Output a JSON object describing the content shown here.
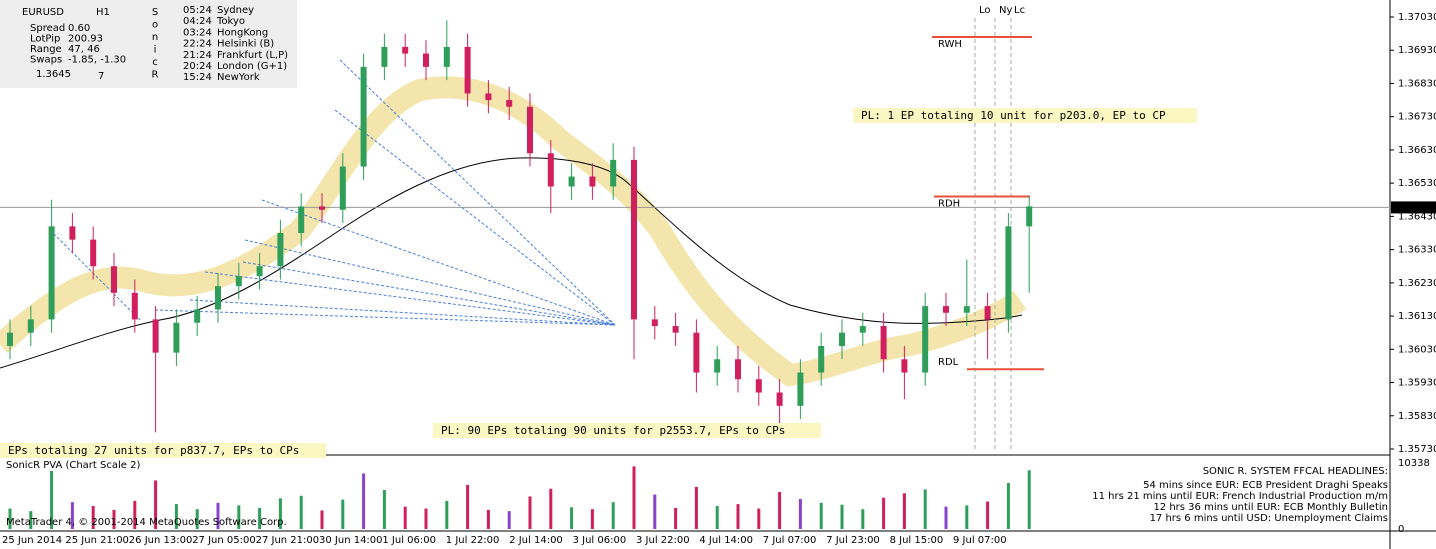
{
  "header": {
    "symbol": "EURUSD",
    "timeframe": "H1",
    "stats": [
      {
        "label": "Spread",
        "value": "0.60"
      },
      {
        "label": "LotPip",
        "value": "200.93"
      },
      {
        "label": "Range",
        "value": "47, 46"
      },
      {
        "label": "Swaps",
        "value": "-1.85, -1.30"
      }
    ],
    "price": "1.3645",
    "price_digit": "7",
    "brand_letters": [
      "S",
      "o",
      "n",
      "i",
      "c",
      "R"
    ]
  },
  "sessions": [
    {
      "time": "05:24",
      "city": "Sydney",
      "color": "#333333"
    },
    {
      "time": "04:24",
      "city": "Tokyo",
      "color": "#333333"
    },
    {
      "time": "03:24",
      "city": "HongKong",
      "color": "#333333"
    },
    {
      "time": "22:24",
      "city": "Helsinki  (B)",
      "color": "#333333"
    },
    {
      "time": "21:24",
      "city": "Frankfurt  (L,P)",
      "color": "#333333"
    },
    {
      "time": "20:24",
      "city": "London  (G+1)",
      "color": "#333333"
    },
    {
      "time": "15:24",
      "city": "NewYork",
      "color": "#1a9a1a"
    }
  ],
  "price_axis": {
    "ticks": [
      {
        "value": 1.3703,
        "label": "1.37030"
      },
      {
        "value": 1.3693,
        "label": "1.36930"
      },
      {
        "value": 1.3683,
        "label": "1.36830"
      },
      {
        "value": 1.3673,
        "label": "1.36730"
      },
      {
        "value": 1.3663,
        "label": "1.36630"
      },
      {
        "value": 1.3653,
        "label": "1.36530"
      },
      {
        "value": 1.3643,
        "label": "1.36430"
      },
      {
        "value": 1.3633,
        "label": "1.36330"
      },
      {
        "value": 1.3623,
        "label": "1.36230"
      },
      {
        "value": 1.3613,
        "label": "1.36130"
      },
      {
        "value": 1.3603,
        "label": "1.36030"
      },
      {
        "value": 1.3593,
        "label": "1.35930"
      },
      {
        "value": 1.3583,
        "label": "1.35830"
      },
      {
        "value": 1.3573,
        "label": "1.35730"
      }
    ],
    "current": {
      "value": 1.36457,
      "label": "1.36457"
    }
  },
  "time_axis": [
    "25 Jun 2014",
    "25 Jun 21:00",
    "26 Jun 13:00",
    "27 Jun 05:00",
    "27 Jun 21:00",
    "30 Jun 14:00",
    "1 Jul 06:00",
    "1 Jul 22:00",
    "2 Jul 14:00",
    "3 Jul 06:00",
    "3 Jul 22:00",
    "4 Jul 14:00",
    "7 Jul 07:00",
    "7 Jul 23:00",
    "8 Jul 15:00",
    "9 Jul 07:00"
  ],
  "candles": [
    [
      1.3604,
      1.3612,
      1.36,
      1.3608
    ],
    [
      1.3608,
      1.3616,
      1.3604,
      1.3612
    ],
    [
      1.3612,
      1.3648,
      1.3608,
      1.364
    ],
    [
      1.364,
      1.3644,
      1.3632,
      1.3636
    ],
    [
      1.3636,
      1.364,
      1.3624,
      1.3628
    ],
    [
      1.3628,
      1.3632,
      1.3616,
      1.362
    ],
    [
      1.362,
      1.3624,
      1.3608,
      1.3612
    ],
    [
      1.3612,
      1.3616,
      1.3578,
      1.3602
    ],
    [
      1.3602,
      1.3615,
      1.3598,
      1.3611
    ],
    [
      1.3611,
      1.3619,
      1.3607,
      1.3615
    ],
    [
      1.3615,
      1.3626,
      1.3611,
      1.3622
    ],
    [
      1.3622,
      1.3629,
      1.3618,
      1.3625
    ],
    [
      1.3625,
      1.3632,
      1.3621,
      1.3628
    ],
    [
      1.3628,
      1.3642,
      1.3624,
      1.3638
    ],
    [
      1.3638,
      1.365,
      1.3634,
      1.3646
    ],
    [
      1.3646,
      1.365,
      1.3641,
      1.3645
    ],
    [
      1.3645,
      1.3662,
      1.3641,
      1.3658
    ],
    [
      1.3658,
      1.3692,
      1.3654,
      1.3688
    ],
    [
      1.3688,
      1.3698,
      1.3684,
      1.3694
    ],
    [
      1.3694,
      1.3698,
      1.3688,
      1.3692
    ],
    [
      1.3692,
      1.3696,
      1.3684,
      1.3688
    ],
    [
      1.3688,
      1.3702,
      1.3684,
      1.3694
    ],
    [
      1.3694,
      1.3698,
      1.3676,
      1.368
    ],
    [
      1.368,
      1.3684,
      1.3674,
      1.3678
    ],
    [
      1.3678,
      1.3682,
      1.3672,
      1.3676
    ],
    [
      1.3676,
      1.368,
      1.3658,
      1.3662
    ],
    [
      1.3662,
      1.3666,
      1.3644,
      1.3652
    ],
    [
      1.3652,
      1.3659,
      1.3648,
      1.3655
    ],
    [
      1.3655,
      1.3659,
      1.3648,
      1.3652
    ],
    [
      1.3652,
      1.3665,
      1.3648,
      1.366
    ],
    [
      1.366,
      1.3664,
      1.36,
      1.3612
    ],
    [
      1.3612,
      1.3616,
      1.3606,
      1.361
    ],
    [
      1.361,
      1.3614,
      1.3604,
      1.3608
    ],
    [
      1.3608,
      1.3612,
      1.359,
      1.3596
    ],
    [
      1.3596,
      1.3604,
      1.3592,
      1.36
    ],
    [
      1.36,
      1.3604,
      1.359,
      1.3594
    ],
    [
      1.3594,
      1.3598,
      1.3586,
      1.359
    ],
    [
      1.359,
      1.3594,
      1.358,
      1.3586
    ],
    [
      1.3586,
      1.36,
      1.3582,
      1.3596
    ],
    [
      1.3596,
      1.3608,
      1.3592,
      1.3604
    ],
    [
      1.3604,
      1.3612,
      1.36,
      1.3608
    ],
    [
      1.3608,
      1.3614,
      1.3604,
      1.361
    ],
    [
      1.361,
      1.3614,
      1.3596,
      1.36
    ],
    [
      1.36,
      1.3604,
      1.3588,
      1.3596
    ],
    [
      1.3596,
      1.362,
      1.3592,
      1.3616
    ],
    [
      1.3616,
      1.362,
      1.361,
      1.3614
    ],
    [
      1.3614,
      1.363,
      1.361,
      1.3616
    ],
    [
      1.3616,
      1.362,
      1.36,
      1.3612
    ],
    [
      1.3612,
      1.3644,
      1.3608,
      1.364
    ],
    [
      1.364,
      1.3649,
      1.362,
      1.3646
    ]
  ],
  "volumes": [
    3200,
    2800,
    9100,
    4200,
    3600,
    3000,
    4400,
    7600,
    3900,
    3100,
    4100,
    3700,
    3300,
    4800,
    5200,
    2900,
    4600,
    8700,
    6100,
    3500,
    3200,
    4400,
    6900,
    3000,
    2800,
    5100,
    6300,
    3400,
    3100,
    4200,
    9800,
    5400,
    3300,
    6600,
    3600,
    3900,
    3200,
    5800,
    4700,
    4100,
    3800,
    3100,
    4900,
    5600,
    6200,
    3500,
    3700,
    4300,
    7200,
    9200
  ],
  "volume_axis": [
    10338,
    0
  ],
  "levels": [
    {
      "label": "RWH",
      "value": 1.3697,
      "color": "#e8503a"
    },
    {
      "label": "RDH",
      "value": 1.3649,
      "color": "#e8503a"
    },
    {
      "label": "RDL",
      "value": 1.3597,
      "color": "#e8503a"
    }
  ],
  "session_markers": [
    "Lo",
    "Ny",
    "Lc"
  ],
  "annotations": [
    "PL: 1 EP totaling 10 unit for p203.0, EP to CP",
    "PL: 90 EPs totaling 90 units for p2553.7, EPs to CPs",
    "EPs totaling 27 units for p837.7, EPs to CPs"
  ],
  "volume_panel": {
    "title": "SonicR PVA  (Chart Scale 2)",
    "copyright": "MetaTrader 4, © 2001-2014 MetaQuotes Software Corp."
  },
  "headlines": {
    "title": "SONIC R. SYSTEM  FFCAL HEADLINES:",
    "items": [
      {
        "text": "54 mins since EUR: ECB President Draghi Speaks",
        "color": "#d01010"
      },
      {
        "text": "11 hrs 21 mins until EUR: French Industrial Production m/m",
        "color": "#1030d0"
      },
      {
        "text": "12 hrs 36 mins until EUR: ECB Monthly Bulletin",
        "color": "#101080"
      },
      {
        "text": "17 hrs 6 mins until USD: Unemployment Claims",
        "color": "#d01010"
      }
    ]
  }
}
